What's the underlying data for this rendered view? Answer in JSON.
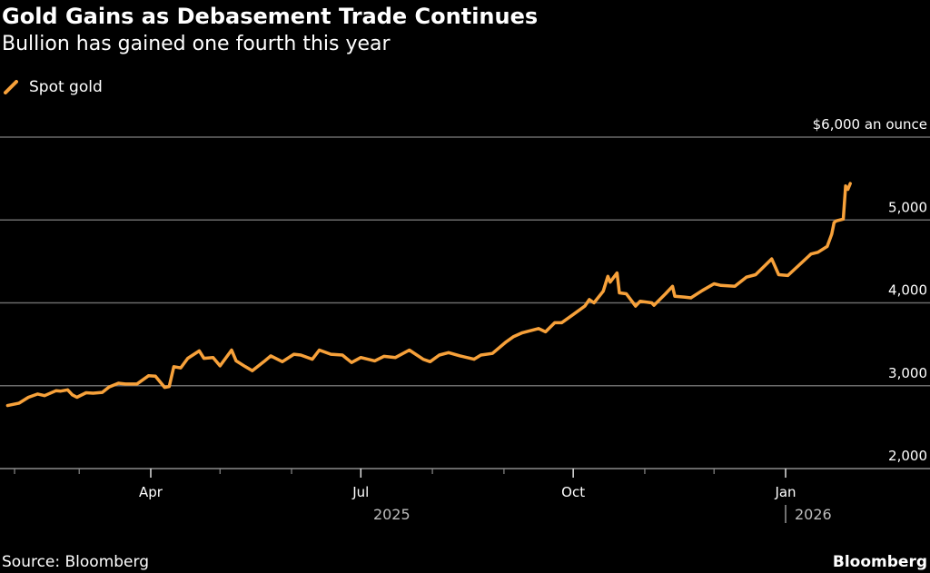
{
  "header": {
    "title": "Gold Gains as Debasement Trade Continues",
    "subtitle": "Bullion has gained one fourth this year"
  },
  "legend": {
    "label": "Spot gold",
    "color": "#f7a13a"
  },
  "footer": {
    "source": "Source: Bloomberg",
    "brand": "Bloomberg"
  },
  "chart_data": {
    "type": "line",
    "title": "Gold Gains as Debasement Trade Continues",
    "subtitle": "Bullion has gained one fourth this year",
    "xlabel": "",
    "ylabel": "",
    "y_unit_label": "$6,000 an ounce",
    "ylim": [
      2000,
      6000
    ],
    "yticks": [
      2000,
      3000,
      4000,
      5000,
      6000
    ],
    "ytick_labels": [
      "2,000",
      "3,000",
      "4,000",
      "5,000",
      "$6,000 an ounce"
    ],
    "xticks_major": [
      {
        "date": "2025-04-01",
        "label": "Apr"
      },
      {
        "date": "2025-07-01",
        "label": "Jul"
      },
      {
        "date": "2025-10-01",
        "label": "Oct"
      },
      {
        "date": "2026-01-01",
        "label": "Jan"
      }
    ],
    "xticks_minor": [
      "2025-02-01",
      "2025-03-01",
      "2025-05-01",
      "2025-06-01",
      "2025-08-01",
      "2025-09-01",
      "2025-11-01",
      "2025-12-01"
    ],
    "year_labels": [
      {
        "date": "2025-07-01",
        "label": "2025"
      },
      {
        "date": "2026-01-01",
        "label": "2026"
      }
    ],
    "xlim": [
      "2025-01-28",
      "2026-02-28"
    ],
    "grid": true,
    "legend_position": "top-left",
    "series": [
      {
        "name": "Spot gold",
        "color": "#f7a13a",
        "points": [
          [
            "2025-01-29",
            2760
          ],
          [
            "2025-02-03",
            2790
          ],
          [
            "2025-02-07",
            2860
          ],
          [
            "2025-02-11",
            2900
          ],
          [
            "2025-02-14",
            2880
          ],
          [
            "2025-02-19",
            2940
          ],
          [
            "2025-02-21",
            2935
          ],
          [
            "2025-02-24",
            2950
          ],
          [
            "2025-02-26",
            2890
          ],
          [
            "2025-02-28",
            2860
          ],
          [
            "2025-03-04",
            2915
          ],
          [
            "2025-03-07",
            2910
          ],
          [
            "2025-03-11",
            2920
          ],
          [
            "2025-03-14",
            2985
          ],
          [
            "2025-03-18",
            3030
          ],
          [
            "2025-03-21",
            3020
          ],
          [
            "2025-03-26",
            3020
          ],
          [
            "2025-03-31",
            3120
          ],
          [
            "2025-04-03",
            3115
          ],
          [
            "2025-04-07",
            2980
          ],
          [
            "2025-04-09",
            2990
          ],
          [
            "2025-04-11",
            3230
          ],
          [
            "2025-04-14",
            3215
          ],
          [
            "2025-04-17",
            3330
          ],
          [
            "2025-04-22",
            3420
          ],
          [
            "2025-04-24",
            3330
          ],
          [
            "2025-04-28",
            3340
          ],
          [
            "2025-05-01",
            3240
          ],
          [
            "2025-05-06",
            3430
          ],
          [
            "2025-05-08",
            3300
          ],
          [
            "2025-05-12",
            3230
          ],
          [
            "2025-05-15",
            3180
          ],
          [
            "2025-05-20",
            3290
          ],
          [
            "2025-05-23",
            3360
          ],
          [
            "2025-05-28",
            3290
          ],
          [
            "2025-06-02",
            3380
          ],
          [
            "2025-06-05",
            3370
          ],
          [
            "2025-06-10",
            3320
          ],
          [
            "2025-06-13",
            3430
          ],
          [
            "2025-06-18",
            3380
          ],
          [
            "2025-06-23",
            3370
          ],
          [
            "2025-06-27",
            3280
          ],
          [
            "2025-07-01",
            3340
          ],
          [
            "2025-07-07",
            3300
          ],
          [
            "2025-07-11",
            3355
          ],
          [
            "2025-07-16",
            3340
          ],
          [
            "2025-07-22",
            3430
          ],
          [
            "2025-07-28",
            3320
          ],
          [
            "2025-07-31",
            3290
          ],
          [
            "2025-08-04",
            3370
          ],
          [
            "2025-08-08",
            3400
          ],
          [
            "2025-08-13",
            3360
          ],
          [
            "2025-08-19",
            3320
          ],
          [
            "2025-08-22",
            3370
          ],
          [
            "2025-08-27",
            3390
          ],
          [
            "2025-09-02",
            3530
          ],
          [
            "2025-09-05",
            3590
          ],
          [
            "2025-09-09",
            3640
          ],
          [
            "2025-09-16",
            3690
          ],
          [
            "2025-09-19",
            3650
          ],
          [
            "2025-09-23",
            3760
          ],
          [
            "2025-09-26",
            3760
          ],
          [
            "2025-10-01",
            3860
          ],
          [
            "2025-10-06",
            3960
          ],
          [
            "2025-10-08",
            4040
          ],
          [
            "2025-10-10",
            4000
          ],
          [
            "2025-10-14",
            4140
          ],
          [
            "2025-10-16",
            4320
          ],
          [
            "2025-10-17",
            4250
          ],
          [
            "2025-10-20",
            4360
          ],
          [
            "2025-10-21",
            4120
          ],
          [
            "2025-10-24",
            4110
          ],
          [
            "2025-10-28",
            3960
          ],
          [
            "2025-10-30",
            4020
          ],
          [
            "2025-11-04",
            4000
          ],
          [
            "2025-11-05",
            3970
          ],
          [
            "2025-11-10",
            4110
          ],
          [
            "2025-11-13",
            4200
          ],
          [
            "2025-11-14",
            4080
          ],
          [
            "2025-11-18",
            4070
          ],
          [
            "2025-11-21",
            4060
          ],
          [
            "2025-11-26",
            4150
          ],
          [
            "2025-12-01",
            4230
          ],
          [
            "2025-12-04",
            4210
          ],
          [
            "2025-12-10",
            4200
          ],
          [
            "2025-12-15",
            4310
          ],
          [
            "2025-12-19",
            4340
          ],
          [
            "2025-12-26",
            4530
          ],
          [
            "2025-12-29",
            4340
          ],
          [
            "2026-01-02",
            4330
          ],
          [
            "2026-01-07",
            4460
          ],
          [
            "2026-01-12",
            4590
          ],
          [
            "2026-01-15",
            4610
          ],
          [
            "2026-01-19",
            4680
          ],
          [
            "2026-01-21",
            4830
          ],
          [
            "2026-01-22",
            4970
          ],
          [
            "2026-01-23",
            4990
          ],
          [
            "2026-01-26",
            5010
          ],
          [
            "2026-01-27",
            5410
          ],
          [
            "2026-01-28",
            5370
          ],
          [
            "2026-01-29",
            5440
          ]
        ]
      }
    ]
  }
}
